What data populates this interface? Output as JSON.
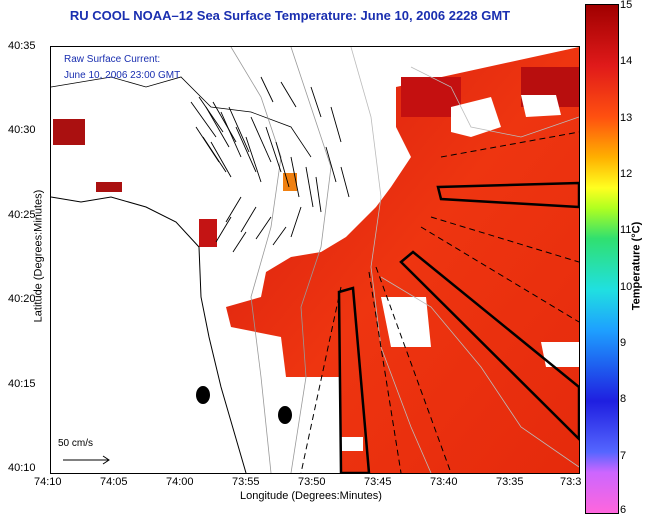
{
  "title": "RU COOL  NOAA–12  Sea Surface Temperature:  June 10, 2006 2228 GMT",
  "info": {
    "line1": "Raw Surface Current:",
    "line2": "June 10, 2006 23:00 GMT"
  },
  "scale_label": "50 cm/s",
  "axes": {
    "xlabel": "Longitude (Degrees:Minutes)",
    "ylabel": "Latitude (Degrees:Minutes)",
    "xticks": [
      "74:10",
      "74:05",
      "74:00",
      "73:55",
      "73:50",
      "73:45",
      "73:40",
      "73:35",
      "73:3"
    ],
    "yticks": [
      "40:35",
      "40:30",
      "40:25",
      "40:20",
      "40:15",
      "40:10"
    ]
  },
  "colorbar": {
    "label": "Temperature (°C)",
    "ticks": [
      "15",
      "14",
      "13",
      "12",
      "11",
      "10",
      "9",
      "8",
      "7",
      "6"
    ],
    "range": [
      6,
      15
    ]
  },
  "colors": {
    "title": "#1a2fb0",
    "sst_main": "#e8240f",
    "sst_hot": "#c01010"
  }
}
